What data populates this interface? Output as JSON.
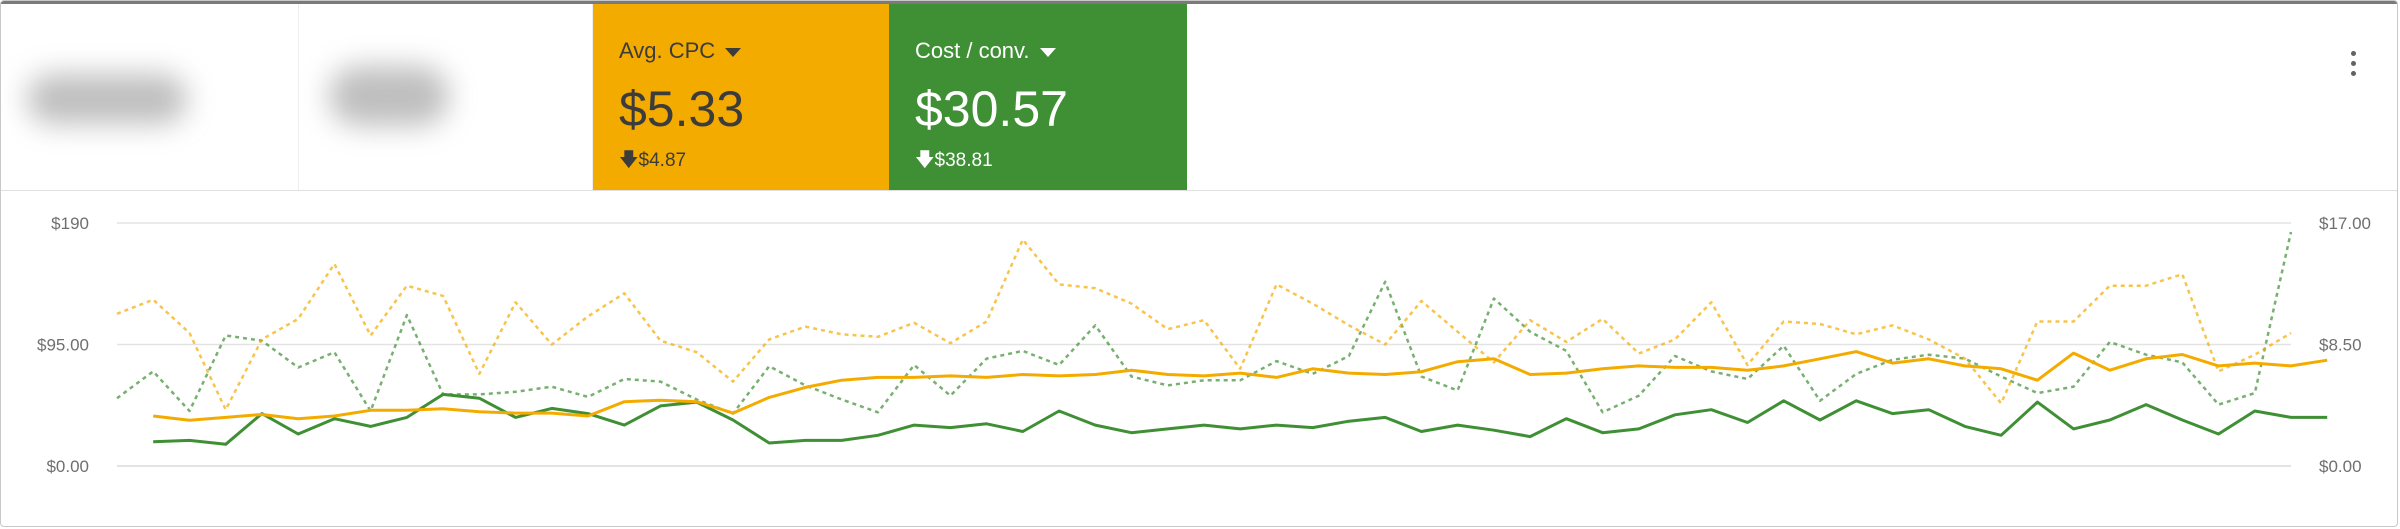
{
  "cards": [
    {
      "label": "Avg. CPC",
      "value": "$5.33",
      "previous": "$4.87"
    },
    {
      "label": "Cost / conv.",
      "value": "$30.57",
      "previous": "$38.81"
    }
  ],
  "colors": {
    "cpc": "#f4ab00",
    "cost": "#3f8f35",
    "grid": "#e3e3e3"
  },
  "icons": {
    "menu": "more-vert-icon",
    "delta": "arrow-down-icon"
  },
  "chart_data": {
    "type": "line",
    "y_left": {
      "ticks": [
        "$190",
        "$95.00",
        "$0.00"
      ],
      "range": [
        0,
        190
      ]
    },
    "y_right": {
      "ticks": [
        "$17.00",
        "$8.50",
        "$0.00"
      ],
      "range": [
        0,
        17
      ]
    },
    "grid": true,
    "series": [
      {
        "color": "#3f8f35",
        "axis": "left",
        "style": "dashed",
        "start": 0,
        "values": [
          53,
          74,
          43,
          102,
          98,
          77,
          89,
          43,
          118,
          56,
          56,
          58,
          62,
          54,
          68,
          66,
          52,
          41,
          78,
          63,
          52,
          42,
          79,
          55,
          84,
          90,
          79,
          110,
          70,
          63,
          67,
          67,
          82,
          72,
          86,
          144,
          70,
          59,
          131,
          105,
          90,
          42,
          55,
          86,
          74,
          68,
          94,
          51,
          72,
          83,
          87,
          84,
          70,
          57,
          62,
          97,
          87,
          81,
          48,
          57,
          183
        ]
      },
      {
        "color": "#f4ab00",
        "axis": "left",
        "style": "dashed",
        "start": 0,
        "values": [
          119,
          130,
          104,
          44,
          99,
          115,
          158,
          102,
          141,
          133,
          72,
          128,
          95,
          117,
          135,
          98,
          89,
          66,
          99,
          109,
          103,
          101,
          112,
          96,
          113,
          177,
          142,
          139,
          127,
          107,
          114,
          76,
          142,
          127,
          110,
          95,
          129,
          105,
          81,
          114,
          97,
          115,
          88,
          99,
          128,
          79,
          113,
          111,
          103,
          110,
          99,
          84,
          49,
          113,
          113,
          141,
          141,
          150,
          74,
          87,
          104
        ]
      },
      {
        "color": "#3f8f35",
        "axis": "left",
        "style": "solid",
        "start": 1,
        "values": [
          19,
          20,
          17,
          41,
          25,
          37,
          31,
          38,
          56,
          53,
          38,
          45,
          41,
          32,
          47,
          50,
          36,
          18,
          20,
          20,
          24,
          32,
          30,
          33,
          27,
          43,
          32,
          26,
          29,
          32,
          29,
          32,
          30,
          35,
          38,
          27,
          32,
          28,
          23,
          37,
          26,
          29,
          40,
          44,
          34,
          51,
          36,
          51,
          41,
          44,
          31,
          24,
          50,
          29,
          36,
          48,
          36,
          25,
          43,
          38,
          38
        ]
      },
      {
        "color": "#f4ab00",
        "axis": "right",
        "style": "solid",
        "start": 1,
        "values": [
          3.5,
          3.2,
          3.4,
          3.6,
          3.3,
          3.5,
          3.9,
          3.9,
          4.0,
          3.8,
          3.7,
          3.7,
          3.5,
          4.5,
          4.6,
          4.5,
          3.7,
          4.8,
          5.5,
          6.0,
          6.2,
          6.2,
          6.3,
          6.2,
          6.4,
          6.3,
          6.4,
          6.7,
          6.4,
          6.3,
          6.5,
          6.2,
          6.8,
          6.5,
          6.4,
          6.6,
          7.3,
          7.5,
          6.4,
          6.5,
          6.8,
          7.0,
          6.9,
          6.9,
          6.7,
          7.0,
          7.5,
          8.0,
          7.2,
          7.5,
          7.0,
          6.8,
          6.0,
          7.9,
          6.7,
          7.5,
          7.8,
          7.0,
          7.2,
          7.0,
          7.4
        ]
      }
    ]
  }
}
